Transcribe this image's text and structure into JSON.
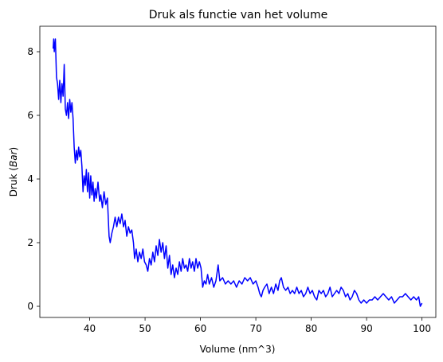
{
  "chart_data": {
    "type": "line",
    "title": "Druk als functie van het volume",
    "xlabel": "Volume (nm^3)",
    "ylabel_prefix": "Druk (",
    "ylabel_unit": "Bar",
    "ylabel_suffix": ")",
    "xlim": [
      31,
      102.5
    ],
    "ylim": [
      -0.35,
      8.8
    ],
    "xticks": [
      40,
      50,
      60,
      70,
      80,
      90,
      100
    ],
    "yticks": [
      0,
      2,
      4,
      6,
      8
    ],
    "grid": false,
    "series": [
      {
        "color": "#0000ff",
        "points": [
          [
            33.4,
            8.1
          ],
          [
            33.5,
            8.4
          ],
          [
            33.6,
            8.0
          ],
          [
            33.8,
            8.4
          ],
          [
            34.0,
            7.2
          ],
          [
            34.2,
            7.0
          ],
          [
            34.4,
            6.5
          ],
          [
            34.6,
            7.1
          ],
          [
            34.8,
            6.4
          ],
          [
            35.0,
            7.0
          ],
          [
            35.2,
            6.6
          ],
          [
            35.4,
            7.6
          ],
          [
            35.6,
            6.2
          ],
          [
            35.8,
            6.0
          ],
          [
            36.0,
            6.4
          ],
          [
            36.2,
            5.9
          ],
          [
            36.4,
            6.5
          ],
          [
            36.6,
            6.1
          ],
          [
            36.8,
            6.4
          ],
          [
            37.0,
            5.9
          ],
          [
            37.2,
            5.0
          ],
          [
            37.4,
            4.5
          ],
          [
            37.6,
            4.9
          ],
          [
            37.8,
            4.6
          ],
          [
            38.0,
            5.0
          ],
          [
            38.2,
            4.7
          ],
          [
            38.4,
            4.9
          ],
          [
            38.6,
            4.4
          ],
          [
            38.8,
            3.6
          ],
          [
            39.0,
            4.1
          ],
          [
            39.2,
            3.8
          ],
          [
            39.4,
            4.3
          ],
          [
            39.6,
            3.6
          ],
          [
            39.8,
            4.2
          ],
          [
            40.0,
            3.4
          ],
          [
            40.2,
            4.1
          ],
          [
            40.4,
            3.5
          ],
          [
            40.6,
            3.9
          ],
          [
            40.8,
            3.3
          ],
          [
            41.0,
            3.7
          ],
          [
            41.2,
            3.4
          ],
          [
            41.5,
            3.9
          ],
          [
            41.8,
            3.3
          ],
          [
            42.0,
            3.5
          ],
          [
            42.3,
            3.1
          ],
          [
            42.6,
            3.6
          ],
          [
            42.9,
            3.2
          ],
          [
            43.2,
            3.4
          ],
          [
            43.5,
            2.2
          ],
          [
            43.7,
            2.0
          ],
          [
            44.0,
            2.3
          ],
          [
            44.3,
            2.5
          ],
          [
            44.6,
            2.8
          ],
          [
            44.9,
            2.5
          ],
          [
            45.2,
            2.8
          ],
          [
            45.5,
            2.6
          ],
          [
            45.8,
            2.9
          ],
          [
            46.1,
            2.5
          ],
          [
            46.4,
            2.7
          ],
          [
            46.7,
            2.2
          ],
          [
            47.0,
            2.5
          ],
          [
            47.3,
            2.3
          ],
          [
            47.6,
            2.4
          ],
          [
            47.9,
            2.0
          ],
          [
            48.1,
            1.5
          ],
          [
            48.4,
            1.8
          ],
          [
            48.7,
            1.4
          ],
          [
            49.0,
            1.7
          ],
          [
            49.3,
            1.5
          ],
          [
            49.6,
            1.8
          ],
          [
            49.9,
            1.4
          ],
          [
            50.2,
            1.3
          ],
          [
            50.5,
            1.1
          ],
          [
            50.8,
            1.5
          ],
          [
            51.1,
            1.3
          ],
          [
            51.4,
            1.7
          ],
          [
            51.7,
            1.4
          ],
          [
            52.0,
            1.9
          ],
          [
            52.3,
            1.6
          ],
          [
            52.6,
            2.1
          ],
          [
            52.9,
            1.7
          ],
          [
            53.2,
            2.0
          ],
          [
            53.5,
            1.5
          ],
          [
            53.8,
            1.9
          ],
          [
            54.1,
            1.2
          ],
          [
            54.4,
            1.6
          ],
          [
            54.7,
            1.0
          ],
          [
            55.0,
            1.3
          ],
          [
            55.3,
            0.9
          ],
          [
            55.6,
            1.2
          ],
          [
            55.9,
            1.0
          ],
          [
            56.2,
            1.4
          ],
          [
            56.5,
            1.1
          ],
          [
            56.8,
            1.5
          ],
          [
            57.1,
            1.2
          ],
          [
            57.4,
            1.3
          ],
          [
            57.7,
            1.1
          ],
          [
            58.0,
            1.5
          ],
          [
            58.3,
            1.2
          ],
          [
            58.6,
            1.4
          ],
          [
            58.9,
            1.1
          ],
          [
            59.2,
            1.5
          ],
          [
            59.5,
            1.2
          ],
          [
            59.8,
            1.4
          ],
          [
            60.1,
            1.2
          ],
          [
            60.4,
            0.6
          ],
          [
            60.7,
            0.8
          ],
          [
            61.0,
            0.7
          ],
          [
            61.3,
            1.0
          ],
          [
            61.6,
            0.7
          ],
          [
            62.0,
            0.9
          ],
          [
            62.4,
            0.6
          ],
          [
            62.8,
            0.8
          ],
          [
            63.2,
            1.3
          ],
          [
            63.5,
            0.8
          ],
          [
            64.0,
            0.9
          ],
          [
            64.5,
            0.7
          ],
          [
            65.0,
            0.8
          ],
          [
            65.5,
            0.7
          ],
          [
            66.0,
            0.8
          ],
          [
            66.5,
            0.6
          ],
          [
            67.0,
            0.8
          ],
          [
            67.5,
            0.7
          ],
          [
            68.0,
            0.9
          ],
          [
            68.5,
            0.8
          ],
          [
            69.0,
            0.9
          ],
          [
            69.5,
            0.7
          ],
          [
            70.0,
            0.8
          ],
          [
            70.4,
            0.6
          ],
          [
            70.7,
            0.4
          ],
          [
            71.0,
            0.3
          ],
          [
            71.3,
            0.5
          ],
          [
            71.6,
            0.6
          ],
          [
            72.0,
            0.7
          ],
          [
            72.4,
            0.4
          ],
          [
            72.8,
            0.6
          ],
          [
            73.2,
            0.4
          ],
          [
            73.6,
            0.7
          ],
          [
            74.0,
            0.5
          ],
          [
            74.3,
            0.8
          ],
          [
            74.6,
            0.9
          ],
          [
            75.0,
            0.6
          ],
          [
            75.4,
            0.5
          ],
          [
            75.8,
            0.6
          ],
          [
            76.2,
            0.4
          ],
          [
            76.6,
            0.5
          ],
          [
            77.0,
            0.4
          ],
          [
            77.4,
            0.6
          ],
          [
            77.8,
            0.4
          ],
          [
            78.2,
            0.5
          ],
          [
            78.6,
            0.3
          ],
          [
            79.0,
            0.4
          ],
          [
            79.4,
            0.6
          ],
          [
            79.8,
            0.4
          ],
          [
            80.2,
            0.5
          ],
          [
            80.6,
            0.3
          ],
          [
            81.0,
            0.2
          ],
          [
            81.4,
            0.5
          ],
          [
            81.8,
            0.4
          ],
          [
            82.2,
            0.5
          ],
          [
            82.6,
            0.3
          ],
          [
            83.0,
            0.4
          ],
          [
            83.4,
            0.6
          ],
          [
            83.8,
            0.3
          ],
          [
            84.2,
            0.4
          ],
          [
            84.6,
            0.5
          ],
          [
            85.0,
            0.4
          ],
          [
            85.4,
            0.6
          ],
          [
            85.8,
            0.5
          ],
          [
            86.2,
            0.3
          ],
          [
            86.6,
            0.4
          ],
          [
            87.0,
            0.2
          ],
          [
            87.4,
            0.3
          ],
          [
            87.8,
            0.5
          ],
          [
            88.2,
            0.4
          ],
          [
            88.6,
            0.2
          ],
          [
            89.0,
            0.1
          ],
          [
            89.5,
            0.2
          ],
          [
            90.0,
            0.1
          ],
          [
            90.5,
            0.2
          ],
          [
            91.0,
            0.2
          ],
          [
            91.5,
            0.3
          ],
          [
            92.0,
            0.2
          ],
          [
            92.5,
            0.3
          ],
          [
            93.0,
            0.4
          ],
          [
            93.5,
            0.3
          ],
          [
            94.0,
            0.2
          ],
          [
            94.5,
            0.3
          ],
          [
            95.0,
            0.1
          ],
          [
            95.5,
            0.2
          ],
          [
            96.0,
            0.3
          ],
          [
            96.5,
            0.3
          ],
          [
            97.0,
            0.4
          ],
          [
            97.5,
            0.3
          ],
          [
            98.0,
            0.2
          ],
          [
            98.5,
            0.3
          ],
          [
            99.0,
            0.2
          ],
          [
            99.4,
            0.3
          ],
          [
            99.7,
            0.0
          ],
          [
            100.0,
            0.1
          ]
        ]
      }
    ]
  }
}
